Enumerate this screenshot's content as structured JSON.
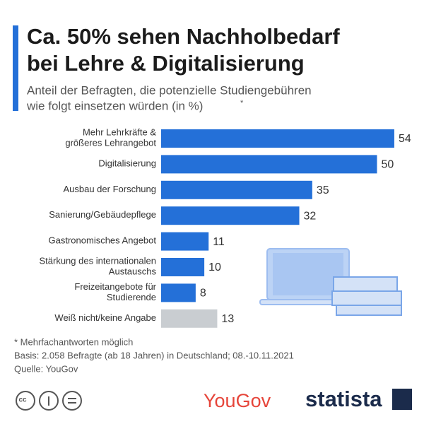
{
  "chart_data": {
    "type": "bar",
    "title": [
      "Ca. 50% sehen Nachholbedarf",
      "bei Lehre & Digitalisierung"
    ],
    "subtitle": [
      "Anteil der Befragten, die potenzielle Studiengebühren",
      "wie folgt einsetzen würden (in %)"
    ],
    "subtitle_mark": "*",
    "categories": [
      [
        "Mehr Lehrkräfte &",
        "größeres Lehrangebot"
      ],
      [
        "Digitalisierung"
      ],
      [
        "Ausbau der Forschung"
      ],
      [
        "Sanierung/Gebäudepflege"
      ],
      [
        "Gastronomisches Angebot"
      ],
      [
        "Stärkung des internationalen",
        "Austauschs"
      ],
      [
        "Freizeitangebote für",
        "Studierende"
      ],
      [
        "Weiß nicht/keine Angabe"
      ]
    ],
    "values": [
      54,
      50,
      35,
      32,
      11,
      10,
      8,
      13
    ],
    "colors": [
      "#2470d8",
      "#2470d8",
      "#2470d8",
      "#2470d8",
      "#2470d8",
      "#2470d8",
      "#2470d8",
      "#c9cdd1"
    ],
    "notes": [
      "* Mehrfachantworten möglich",
      "Basis: 2.058 Befragte (ab 18 Jahren) in Deutschland; 08.-10.11.2021",
      "Quelle: YouGov"
    ],
    "brands": [
      "YouGov",
      "statista"
    ]
  }
}
